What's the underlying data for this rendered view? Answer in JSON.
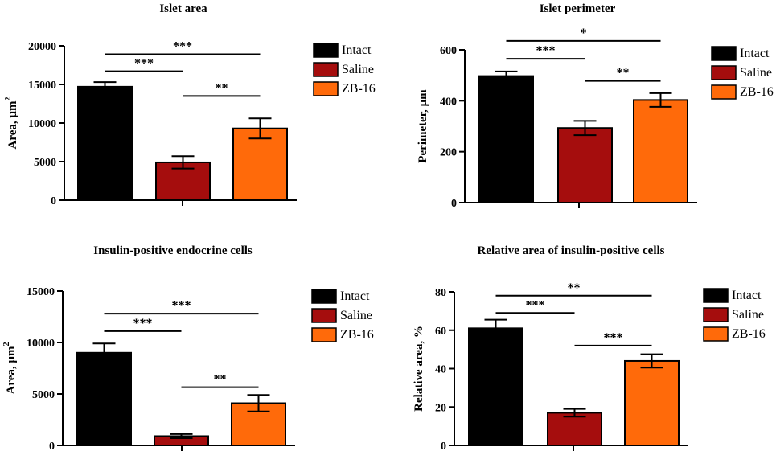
{
  "colors": {
    "Intact": "#000000",
    "Saline": "#a50d0d",
    "ZB-16": "#ff6a0a"
  },
  "chart_data": [
    {
      "type": "bar",
      "title": "Islet area",
      "ylabel": "Area, µm",
      "ylabel_sup": "2",
      "xlabel": "",
      "ylim": [
        0,
        20000
      ],
      "yticks": [
        0,
        5000,
        10000,
        15000,
        20000
      ],
      "categories": [
        "Intact",
        "Saline",
        "ZB-16"
      ],
      "values": [
        14700,
        4900,
        9300
      ],
      "errors": [
        600,
        800,
        1300
      ],
      "legend": [
        "Intact",
        "Saline",
        "ZB-16"
      ],
      "legend_position": "right",
      "significance": [
        {
          "from": 0,
          "to": 1,
          "label": "***",
          "y": 16700
        },
        {
          "from": 0,
          "to": 2,
          "label": "***",
          "y": 18900
        },
        {
          "from": 1,
          "to": 2,
          "label": "**",
          "y": 13500
        }
      ]
    },
    {
      "type": "bar",
      "title": "Islet perimeter",
      "ylabel": "Perimeter, µm",
      "ylabel_sup": "",
      "xlabel": "",
      "ylim": [
        0,
        600
      ],
      "yticks": [
        0,
        200,
        400,
        600
      ],
      "categories": [
        "Intact",
        "Saline",
        "ZB-16"
      ],
      "values": [
        497,
        293,
        403
      ],
      "errors": [
        18,
        28,
        27
      ],
      "legend": [
        "Intact",
        "Saline",
        "ZB-16"
      ],
      "legend_position": "right",
      "significance": [
        {
          "from": 0,
          "to": 1,
          "label": "***",
          "y": 565
        },
        {
          "from": 0,
          "to": 2,
          "label": "*",
          "y": 635
        },
        {
          "from": 1,
          "to": 2,
          "label": "**",
          "y": 478
        }
      ]
    },
    {
      "type": "bar",
      "title": "Insulin-positive endocrine cells",
      "ylabel": "Area, µm",
      "ylabel_sup": "2",
      "xlabel": "",
      "ylim": [
        0,
        15000
      ],
      "yticks": [
        0,
        5000,
        10000,
        15000
      ],
      "categories": [
        "Intact",
        "Saline",
        "ZB-16"
      ],
      "values": [
        9000,
        900,
        4100
      ],
      "errors": [
        900,
        200,
        800
      ],
      "legend": [
        "Intact",
        "Saline",
        "ZB-16"
      ],
      "legend_position": "right",
      "significance": [
        {
          "from": 0,
          "to": 1,
          "label": "***",
          "y": 11100
        },
        {
          "from": 0,
          "to": 2,
          "label": "***",
          "y": 12800
        },
        {
          "from": 1,
          "to": 2,
          "label": "**",
          "y": 5650
        }
      ]
    },
    {
      "type": "bar",
      "title": "Relative area of insulin-positive cells",
      "ylabel": "Relative area, %",
      "ylabel_sup": "",
      "xlabel": "",
      "ylim": [
        0,
        80
      ],
      "yticks": [
        0,
        20,
        40,
        60,
        80
      ],
      "categories": [
        "Intact",
        "Saline",
        "ZB-16"
      ],
      "values": [
        61,
        17,
        44
      ],
      "errors": [
        4.5,
        2,
        3.5
      ],
      "legend": [
        "Intact",
        "Saline",
        "ZB-16"
      ],
      "legend_position": "right",
      "significance": [
        {
          "from": 0,
          "to": 1,
          "label": "***",
          "y": 69
        },
        {
          "from": 0,
          "to": 2,
          "label": "**",
          "y": 78
        },
        {
          "from": 1,
          "to": 2,
          "label": "***",
          "y": 52
        }
      ]
    }
  ]
}
